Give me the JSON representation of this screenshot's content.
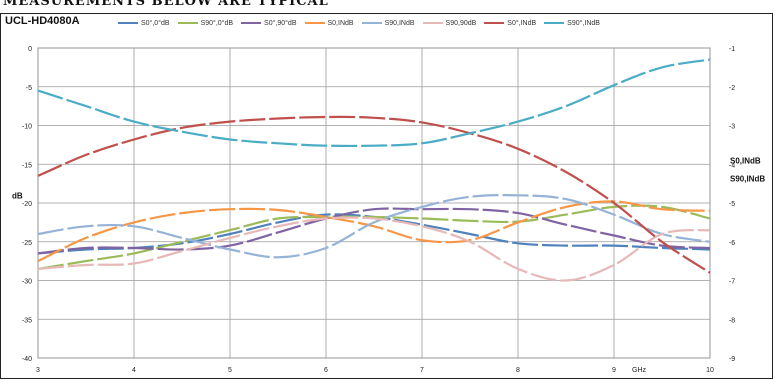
{
  "header": {
    "title": "MEASUREMENTS BELOW ARE TYPICAL"
  },
  "chart_data": {
    "type": "line",
    "title": "UCL-HD4080A",
    "xlabel": "GHz",
    "ylabel": "dB",
    "right_axis_labels": [
      "S0,INdB",
      "S90,INdB"
    ],
    "xlim": [
      3,
      10
    ],
    "ylim_left": [
      -40,
      0
    ],
    "ylim_right": [
      -8,
      1
    ],
    "x_ticks": [
      "3",
      "4",
      "5",
      "6",
      "7",
      "8",
      "9",
      "10"
    ],
    "y_ticks_left": [
      "0",
      "-5",
      "-10",
      "-15",
      "-20",
      "-25",
      "-30",
      "-35",
      "-40"
    ],
    "y_ticks_right": [
      "1",
      "2",
      "3",
      "4",
      "5",
      "6",
      "7",
      "8",
      "9"
    ],
    "grid": true,
    "legend_position": "top",
    "series": [
      {
        "name": "S0°,0°dB",
        "color": "#4f81bd",
        "axis": "left",
        "x": [
          3,
          3.5,
          4,
          4.5,
          5,
          5.5,
          6,
          6.5,
          7,
          7.5,
          8,
          8.5,
          9,
          9.5,
          10
        ],
        "y": [
          -26.5,
          -26,
          -25.8,
          -25.2,
          -24,
          -22.5,
          -21.5,
          -21.8,
          -22.8,
          -24,
          -25.2,
          -25.5,
          -25.5,
          -25.8,
          -26
        ]
      },
      {
        "name": "S90°,0°dB",
        "color": "#9bbb59",
        "axis": "left",
        "x": [
          3,
          3.5,
          4,
          4.5,
          5,
          5.5,
          6,
          6.5,
          7,
          7.5,
          8,
          8.5,
          9,
          9.5,
          10
        ],
        "y": [
          -28.5,
          -27.5,
          -26.5,
          -25,
          -23.5,
          -22,
          -21.8,
          -21.8,
          -22,
          -22.3,
          -22.4,
          -21.5,
          -20.5,
          -20.5,
          -22
        ]
      },
      {
        "name": "S0°,90°dB",
        "color": "#8064a2",
        "axis": "left",
        "x": [
          3,
          3.5,
          4,
          4.5,
          5,
          5.5,
          6,
          6.5,
          7,
          7.5,
          8,
          8.5,
          9,
          9.5,
          10
        ],
        "y": [
          -26.5,
          -25.8,
          -25.8,
          -26,
          -25.5,
          -23.8,
          -22,
          -20.8,
          -20.8,
          -20.8,
          -21.3,
          -22.8,
          -24.2,
          -25.5,
          -25.8
        ]
      },
      {
        "name": "S0,INdB",
        "color": "#f79646",
        "axis": "left",
        "x": [
          3,
          3.5,
          4,
          4.5,
          5,
          5.5,
          6,
          6.5,
          7,
          7.5,
          8,
          8.5,
          9,
          9.5,
          10
        ],
        "y": [
          -27.5,
          -24.5,
          -22.5,
          -21.3,
          -20.8,
          -20.9,
          -21.8,
          -23,
          -24.8,
          -24.8,
          -22.5,
          -20.5,
          -19.8,
          -20.8,
          -21
        ]
      },
      {
        "name": "S90,INdB",
        "color": "#95b3d7",
        "axis": "left",
        "x": [
          3,
          3.5,
          4,
          4.5,
          5,
          5.5,
          6,
          6.5,
          7,
          7.5,
          8,
          8.5,
          9,
          9.5,
          10
        ],
        "y": [
          -24,
          -23,
          -23,
          -24.5,
          -26,
          -27,
          -25.8,
          -22.5,
          -20.5,
          -19.2,
          -19,
          -19.5,
          -21.5,
          -24,
          -25
        ]
      },
      {
        "name": "S90,90dB",
        "color": "#e6b9b8",
        "axis": "left",
        "x": [
          3,
          3.5,
          4,
          4.5,
          5,
          5.5,
          6,
          6.5,
          7,
          7.5,
          8,
          8.5,
          9,
          9.5,
          10
        ],
        "y": [
          -28.5,
          -28,
          -27.8,
          -26.2,
          -24.5,
          -23,
          -22,
          -22,
          -23,
          -25,
          -28.5,
          -30,
          -28,
          -24,
          -23.5
        ]
      },
      {
        "name": "S0°,INdB",
        "color": "#c0504d",
        "axis": "left",
        "x": [
          3,
          3.5,
          4,
          4.5,
          5,
          5.5,
          6,
          6.5,
          7,
          7.5,
          8,
          8.5,
          9,
          9.5,
          10
        ],
        "y": [
          -16.5,
          -13.8,
          -11.8,
          -10.3,
          -9.5,
          -9.1,
          -8.9,
          -9.0,
          -9.6,
          -11,
          -13,
          -16,
          -20,
          -25,
          -29
        ]
      },
      {
        "name": "S90°,INdB",
        "color": "#4bacc6",
        "axis": "left",
        "x": [
          3,
          3.5,
          4,
          4.5,
          5,
          5.5,
          6,
          6.5,
          7,
          7.5,
          8,
          8.5,
          9,
          9.5,
          10
        ],
        "y": [
          -5.5,
          -7.5,
          -9.5,
          -10.8,
          -11.8,
          -12.3,
          -12.6,
          -12.6,
          -12.3,
          -11,
          -9.5,
          -7.5,
          -4.8,
          -2.5,
          -1.5
        ]
      }
    ]
  }
}
